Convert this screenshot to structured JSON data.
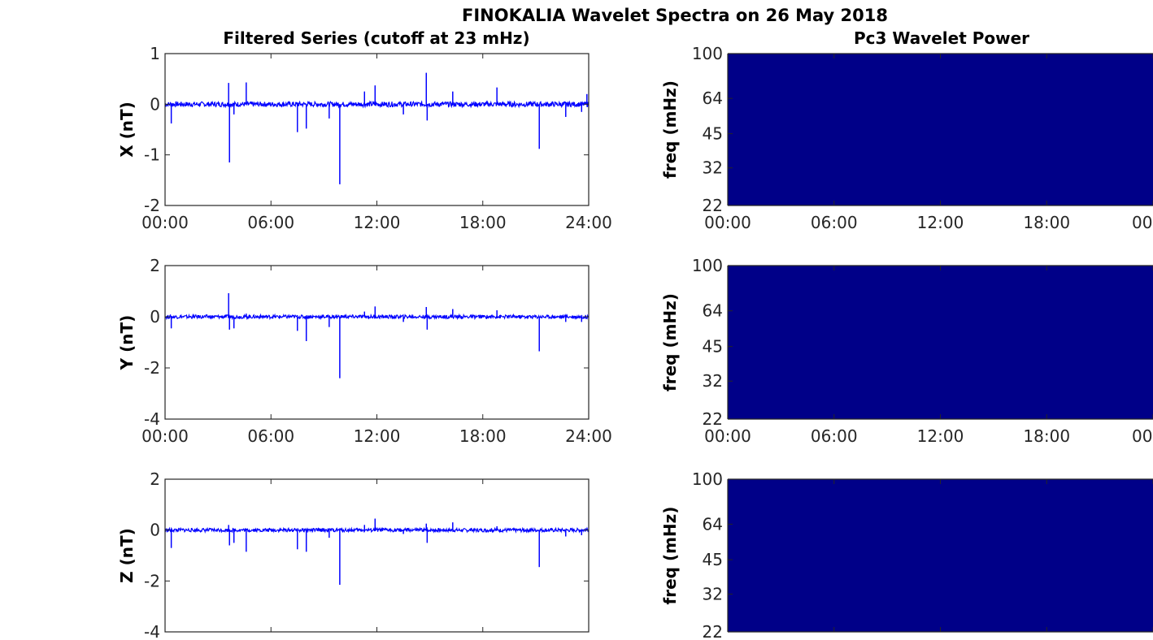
{
  "figure": {
    "title": "FINOKALIA Wavelet Spectra on 26 May 2018",
    "left_title": "Filtered Series (cutoff at 23 mHz)",
    "right_title": "Pc3 Wavelet Power"
  },
  "colors": {
    "series_line": "#0000ff",
    "wavelet_fill": "#000088",
    "axes": "#262626"
  },
  "chart_data": [
    {
      "type": "line",
      "name": "X",
      "ylabel": "X (nT)",
      "ylim": [
        -2,
        1
      ],
      "yticks": [
        "1",
        "0",
        "-1",
        "-2"
      ],
      "xlim": [
        "00:00",
        "24:00"
      ],
      "xticks": [
        "00:00",
        "06:00",
        "12:00",
        "18:00",
        "24:00"
      ],
      "baseline_noise": 0.05,
      "spikes": [
        {
          "t": 0.35,
          "v": -0.38
        },
        {
          "t": 3.6,
          "v": 0.42
        },
        {
          "t": 3.65,
          "v": -1.15
        },
        {
          "t": 3.9,
          "v": -0.2
        },
        {
          "t": 4.6,
          "v": 0.43
        },
        {
          "t": 7.5,
          "v": -0.55
        },
        {
          "t": 8.0,
          "v": -0.48
        },
        {
          "t": 9.3,
          "v": -0.28
        },
        {
          "t": 9.9,
          "v": -1.58
        },
        {
          "t": 11.3,
          "v": 0.25
        },
        {
          "t": 11.9,
          "v": 0.37
        },
        {
          "t": 13.5,
          "v": -0.2
        },
        {
          "t": 14.8,
          "v": 0.62
        },
        {
          "t": 14.85,
          "v": -0.32
        },
        {
          "t": 16.3,
          "v": 0.25
        },
        {
          "t": 18.8,
          "v": 0.33
        },
        {
          "t": 21.2,
          "v": -0.88
        },
        {
          "t": 22.7,
          "v": -0.25
        },
        {
          "t": 23.6,
          "v": -0.15
        },
        {
          "t": 23.9,
          "v": 0.2
        }
      ]
    },
    {
      "type": "line",
      "name": "Y",
      "ylabel": "Y (nT)",
      "ylim": [
        -4,
        2
      ],
      "yticks": [
        "2",
        "0",
        "-2",
        "-4"
      ],
      "xlim": [
        "00:00",
        "24:00"
      ],
      "xticks": [
        "00:00",
        "06:00",
        "12:00",
        "18:00",
        "24:00"
      ],
      "baseline_noise": 0.07,
      "spikes": [
        {
          "t": 0.35,
          "v": -0.45
        },
        {
          "t": 3.6,
          "v": 0.92
        },
        {
          "t": 3.65,
          "v": -0.5
        },
        {
          "t": 3.9,
          "v": -0.45
        },
        {
          "t": 4.6,
          "v": 0.12
        },
        {
          "t": 7.5,
          "v": -0.55
        },
        {
          "t": 8.0,
          "v": -0.95
        },
        {
          "t": 9.3,
          "v": -0.4
        },
        {
          "t": 9.9,
          "v": -2.4
        },
        {
          "t": 11.3,
          "v": 0.2
        },
        {
          "t": 11.9,
          "v": 0.4
        },
        {
          "t": 13.5,
          "v": -0.2
        },
        {
          "t": 14.8,
          "v": 0.38
        },
        {
          "t": 14.85,
          "v": -0.5
        },
        {
          "t": 16.3,
          "v": 0.3
        },
        {
          "t": 18.8,
          "v": 0.25
        },
        {
          "t": 21.2,
          "v": -1.35
        },
        {
          "t": 22.7,
          "v": -0.2
        },
        {
          "t": 23.6,
          "v": -0.2
        }
      ]
    },
    {
      "type": "line",
      "name": "Z",
      "ylabel": "Z (nT)",
      "ylim": [
        -4,
        2
      ],
      "yticks": [
        "2",
        "0",
        "-2",
        "-4"
      ],
      "xlim": [
        "00:00",
        "24:00"
      ],
      "xticks": [],
      "baseline_noise": 0.07,
      "spikes": [
        {
          "t": 0.35,
          "v": -0.7
        },
        {
          "t": 3.6,
          "v": 0.2
        },
        {
          "t": 3.65,
          "v": -0.6
        },
        {
          "t": 3.9,
          "v": -0.5
        },
        {
          "t": 4.6,
          "v": -0.85
        },
        {
          "t": 7.5,
          "v": -0.75
        },
        {
          "t": 8.0,
          "v": -0.85
        },
        {
          "t": 9.3,
          "v": -0.3
        },
        {
          "t": 9.9,
          "v": -2.15
        },
        {
          "t": 11.3,
          "v": 0.2
        },
        {
          "t": 11.9,
          "v": 0.45
        },
        {
          "t": 13.5,
          "v": -0.15
        },
        {
          "t": 14.8,
          "v": 0.25
        },
        {
          "t": 14.85,
          "v": -0.5
        },
        {
          "t": 16.3,
          "v": 0.3
        },
        {
          "t": 18.8,
          "v": 0.15
        },
        {
          "t": 21.2,
          "v": -1.45
        },
        {
          "t": 22.7,
          "v": -0.25
        },
        {
          "t": 23.6,
          "v": -0.2
        }
      ]
    },
    {
      "type": "heatmap",
      "name": "Pc3 power X",
      "ylabel": "freq (mHz)",
      "yticks": [
        "100",
        "64",
        "45",
        "32",
        "22"
      ],
      "ylim": [
        22,
        100
      ],
      "yscale": "log",
      "xticks": [
        "00:00",
        "06:00",
        "12:00",
        "18:00",
        "00"
      ],
      "power": "uniform (minimum)"
    },
    {
      "type": "heatmap",
      "name": "Pc3 power Y",
      "ylabel": "freq (mHz)",
      "yticks": [
        "100",
        "64",
        "45",
        "32",
        "22"
      ],
      "ylim": [
        22,
        100
      ],
      "yscale": "log",
      "xticks": [
        "00:00",
        "06:00",
        "12:00",
        "18:00",
        "00"
      ],
      "power": "uniform (minimum)"
    },
    {
      "type": "heatmap",
      "name": "Pc3 power Z",
      "ylabel": "freq (mHz)",
      "yticks": [
        "100",
        "64",
        "45",
        "32",
        "22"
      ],
      "ylim": [
        22,
        100
      ],
      "yscale": "log",
      "xticks": [],
      "power": "uniform (minimum)"
    }
  ]
}
